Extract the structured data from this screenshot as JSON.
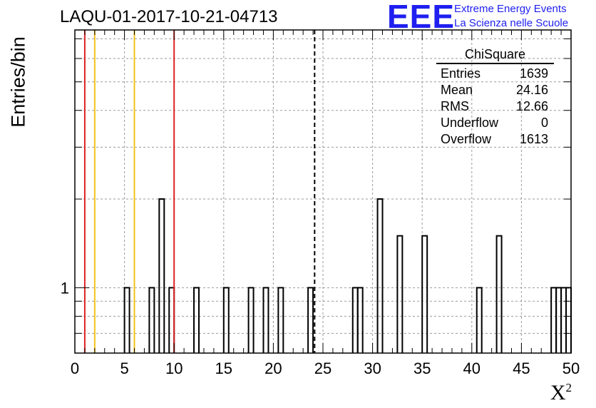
{
  "header": {
    "title": "LAQU-01-2017-10-21-04713"
  },
  "logo": {
    "mark": "EEE",
    "line1": "Extreme Energy Events",
    "line2": "La Scienza nelle Scuole"
  },
  "axes": {
    "ylabel": "Entries/bin",
    "xlabel_base": "X",
    "xlabel_sup": "2"
  },
  "stats": {
    "name": "ChiSquare",
    "rows": [
      {
        "label": "Entries",
        "value": "1639"
      },
      {
        "label": "Mean",
        "value": "24.16"
      },
      {
        "label": "RMS",
        "value": "12.66"
      },
      {
        "label": "Underflow",
        "value": "0"
      },
      {
        "label": "Overflow",
        "value": "1613"
      }
    ]
  },
  "chart_data": {
    "type": "bar",
    "histogram": true,
    "bin_width": 0.5,
    "xlim": [
      0,
      50
    ],
    "ylim_log": [
      0.6,
      7.5
    ],
    "yscale": "log",
    "grid": true,
    "x_ticks": [
      0,
      5,
      10,
      15,
      20,
      25,
      30,
      35,
      40,
      45,
      50
    ],
    "y_tick_labels": [
      {
        "value": 1,
        "label": "1"
      }
    ],
    "bins": [
      {
        "x": 5.0,
        "y": 1
      },
      {
        "x": 7.5,
        "y": 1
      },
      {
        "x": 8.5,
        "y": 2
      },
      {
        "x": 9.5,
        "y": 1
      },
      {
        "x": 12.0,
        "y": 1
      },
      {
        "x": 15.0,
        "y": 1
      },
      {
        "x": 17.5,
        "y": 1
      },
      {
        "x": 19.0,
        "y": 1
      },
      {
        "x": 20.5,
        "y": 1
      },
      {
        "x": 23.5,
        "y": 1
      },
      {
        "x": 28.0,
        "y": 1
      },
      {
        "x": 28.5,
        "y": 1
      },
      {
        "x": 30.5,
        "y": 2
      },
      {
        "x": 32.5,
        "y": 1.5
      },
      {
        "x": 35.0,
        "y": 1.5
      },
      {
        "x": 40.5,
        "y": 1
      },
      {
        "x": 42.5,
        "y": 1.5
      },
      {
        "x": 48.0,
        "y": 1
      },
      {
        "x": 48.5,
        "y": 1
      },
      {
        "x": 49.0,
        "y": 1
      },
      {
        "x": 49.5,
        "y": 1
      }
    ],
    "vlines": [
      {
        "x": 1.0,
        "color": "#dd2222",
        "style": "solid"
      },
      {
        "x": 2.0,
        "color": "#f2c21b",
        "style": "solid"
      },
      {
        "x": 6.0,
        "color": "#f2c21b",
        "style": "solid"
      },
      {
        "x": 10.0,
        "color": "#dd2222",
        "style": "solid"
      },
      {
        "x": 24.16,
        "color": "#000000",
        "style": "dashed"
      }
    ]
  }
}
